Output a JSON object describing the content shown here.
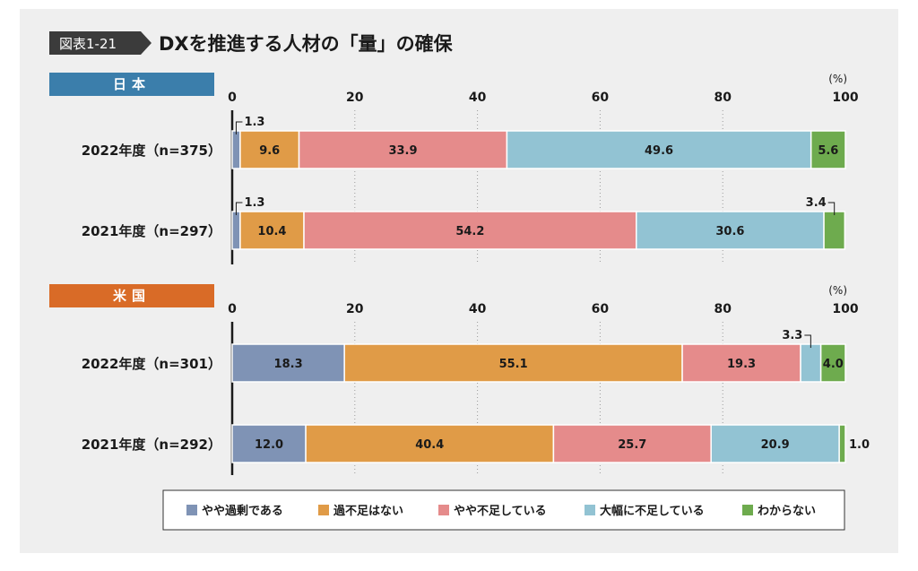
{
  "header": {
    "figure_label": "図表1-21",
    "title": "DXを推進する人材の「量」の確保"
  },
  "colors": {
    "title_bar": "#3b3b3b",
    "japan": "#3b7eab",
    "us": "#d96b27",
    "categories": [
      "#7f93b5",
      "#e09b47",
      "#e58b8b",
      "#92c3d3",
      "#6eab4e"
    ]
  },
  "chart_data": {
    "type": "bar",
    "stacked": true,
    "orientation": "horizontal",
    "unit": "(%)",
    "xlim": [
      0,
      100
    ],
    "xticks": [
      "0",
      "20",
      "40",
      "60",
      "80",
      "100"
    ],
    "legend": {
      "position": "bottom",
      "entries": [
        "やや過剰である",
        "過不足はない",
        "やや不足している",
        "大幅に不足している",
        "わからない"
      ]
    },
    "groups": [
      {
        "name": "日本",
        "rows": [
          {
            "label": "2022年度（n=375）",
            "values": [
              1.3,
              9.6,
              33.9,
              49.6,
              5.6
            ]
          },
          {
            "label": "2021年度（n=297）",
            "values": [
              1.3,
              10.4,
              54.2,
              30.6,
              3.4
            ]
          }
        ]
      },
      {
        "name": "米国",
        "rows": [
          {
            "label": "2022年度（n=301）",
            "values": [
              18.3,
              55.1,
              19.3,
              3.3,
              4.0
            ]
          },
          {
            "label": "2021年度（n=292）",
            "values": [
              12.0,
              40.4,
              25.7,
              20.9,
              1.0
            ]
          }
        ]
      }
    ]
  }
}
